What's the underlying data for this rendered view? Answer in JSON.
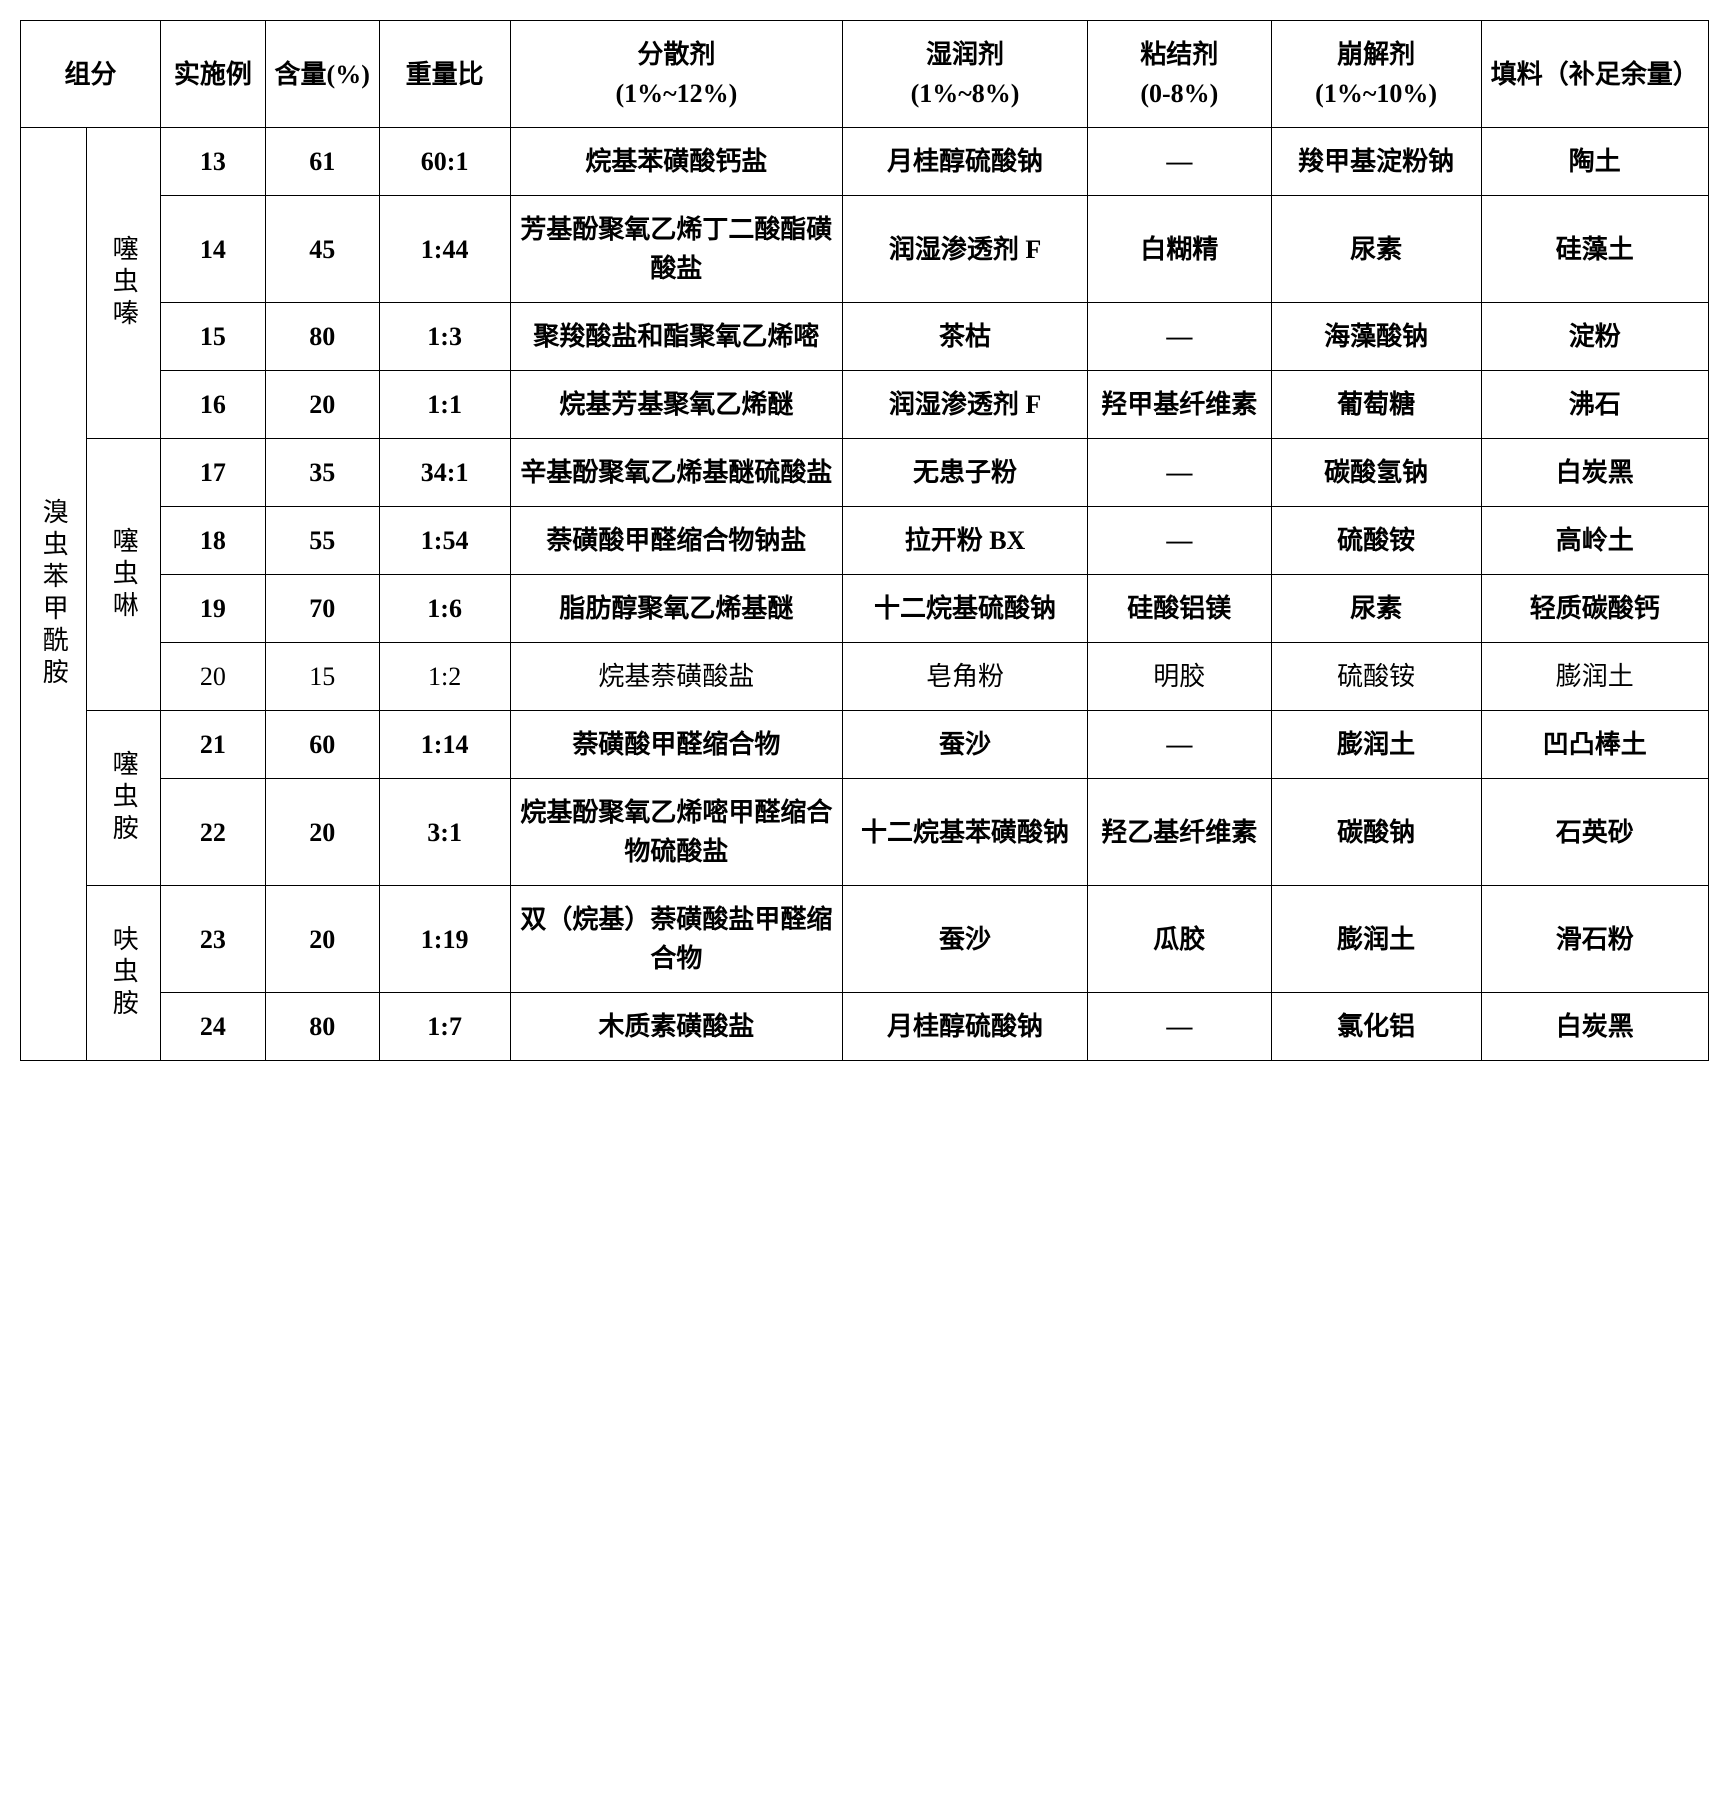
{
  "header": {
    "c0": "组分",
    "c2": "实施例",
    "c3": "含量(%)",
    "c4": "重量比",
    "c5": "分散剂\n(1%~12%)",
    "c6": "湿润剂\n(1%~8%)",
    "c7": "粘结剂\n(0-8%)",
    "c8": "崩解剂\n(1%~10%)",
    "c9": "填料（补足余量）"
  },
  "leftMain": "溴虫苯甲酰胺",
  "groups": [
    {
      "label": "噻虫嗪",
      "rows": [
        {
          "ex": "13",
          "pct": "61",
          "ratio": "60:1",
          "disp": "烷基苯磺酸钙盐",
          "wet": "月桂醇硫酸钠",
          "bind": "—",
          "dis": "羧甲基淀粉钠",
          "fill": "陶土",
          "bold": true
        },
        {
          "ex": "14",
          "pct": "45",
          "ratio": "1:44",
          "disp": "芳基酚聚氧乙烯丁二酸酯磺酸盐",
          "wet": "润湿渗透剂 F",
          "bind": "白糊精",
          "dis": "尿素",
          "fill": "硅藻土",
          "bold": true
        },
        {
          "ex": "15",
          "pct": "80",
          "ratio": "1:3",
          "disp": "聚羧酸盐和酯聚氧乙烯嘧",
          "wet": "茶枯",
          "bind": "—",
          "dis": "海藻酸钠",
          "fill": "淀粉",
          "bold": true
        },
        {
          "ex": "16",
          "pct": "20",
          "ratio": "1:1",
          "disp": "烷基芳基聚氧乙烯醚",
          "wet": "润湿渗透剂 F",
          "bind": "羟甲基纤维素",
          "dis": "葡萄糖",
          "fill": "沸石",
          "bold": true
        }
      ]
    },
    {
      "label": "噻虫啉",
      "rows": [
        {
          "ex": "17",
          "pct": "35",
          "ratio": "34:1",
          "disp": "辛基酚聚氧乙烯基醚硫酸盐",
          "wet": "无患子粉",
          "bind": "—",
          "dis": "碳酸氢钠",
          "fill": "白炭黑",
          "bold": true
        },
        {
          "ex": "18",
          "pct": "55",
          "ratio": "1:54",
          "disp": "萘磺酸甲醛缩合物钠盐",
          "wet": "拉开粉 BX",
          "bind": "—",
          "dis": "硫酸铵",
          "fill": "高岭土",
          "bold": true
        },
        {
          "ex": "19",
          "pct": "70",
          "ratio": "1:6",
          "disp": "脂肪醇聚氧乙烯基醚",
          "wet": "十二烷基硫酸钠",
          "bind": "硅酸铝镁",
          "dis": "尿素",
          "fill": "轻质碳酸钙",
          "bold": true
        },
        {
          "ex": "20",
          "pct": "15",
          "ratio": "1:2",
          "disp": "烷基萘磺酸盐",
          "wet": "皂角粉",
          "bind": "明胶",
          "dis": "硫酸铵",
          "fill": "膨润土",
          "bold": false
        }
      ]
    },
    {
      "label": "噻虫胺",
      "rows": [
        {
          "ex": "21",
          "pct": "60",
          "ratio": "1:14",
          "disp": "萘磺酸甲醛缩合物",
          "wet": "蚕沙",
          "bind": "—",
          "dis": "膨润土",
          "fill": "凹凸棒土",
          "bold": true
        },
        {
          "ex": "22",
          "pct": "20",
          "ratio": "3:1",
          "disp": "烷基酚聚氧乙烯嘧甲醛缩合物硫酸盐",
          "wet": "十二烷基苯磺酸钠",
          "bind": "羟乙基纤维素",
          "dis": "碳酸钠",
          "fill": "石英砂",
          "bold": true
        }
      ]
    },
    {
      "label": "呋虫胺",
      "rows": [
        {
          "ex": "23",
          "pct": "20",
          "ratio": "1:19",
          "disp": "双（烷基）萘磺酸盐甲醛缩合物",
          "wet": "蚕沙",
          "bind": "瓜胶",
          "dis": "膨润土",
          "fill": "滑石粉",
          "bold": true
        },
        {
          "ex": "24",
          "pct": "80",
          "ratio": "1:7",
          "disp": "木质素磺酸盐",
          "wet": "月桂醇硫酸钠",
          "bind": "—",
          "dis": "氯化铝",
          "fill": "白炭黑",
          "bold": true
        }
      ]
    }
  ]
}
